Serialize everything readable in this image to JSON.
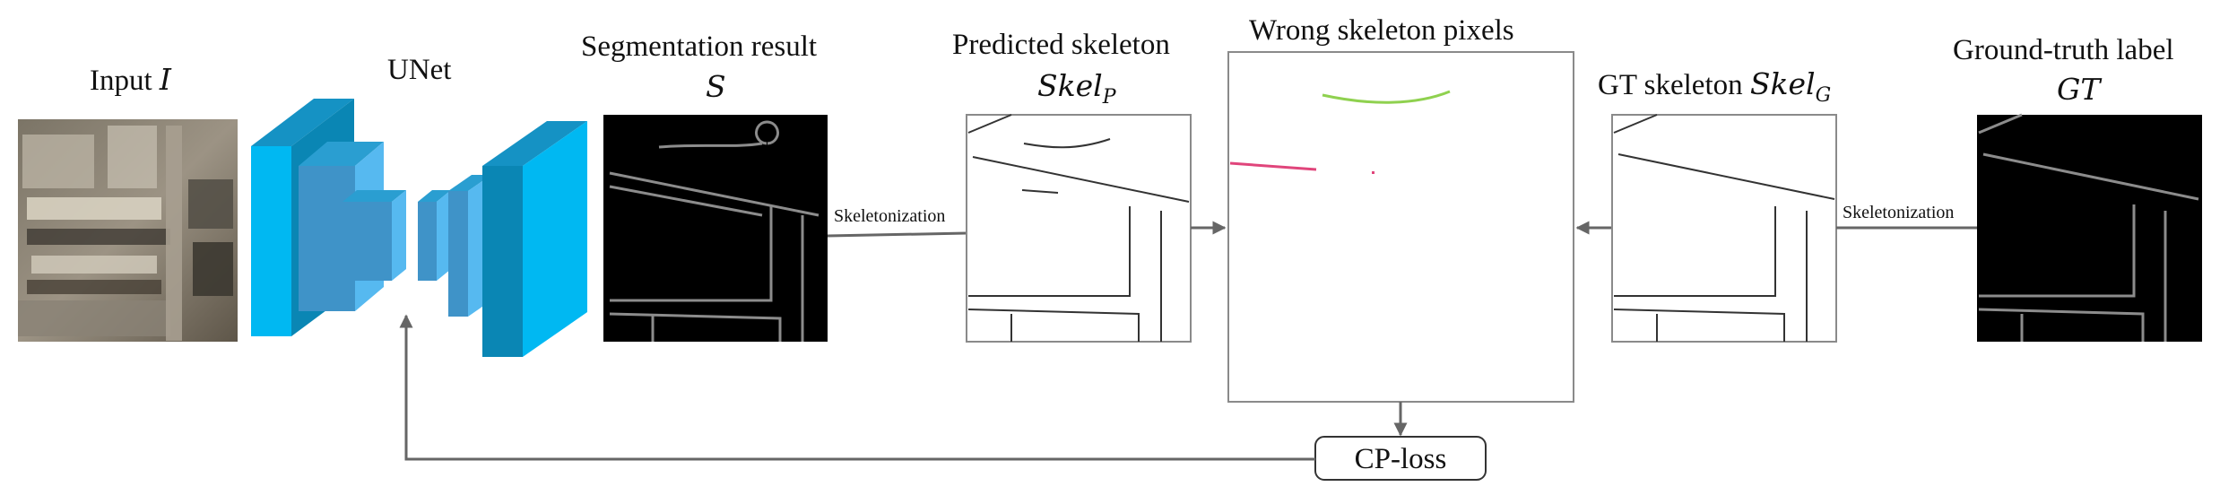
{
  "labels": {
    "input_text": "Input",
    "input_sym": "I",
    "unet": "UNet",
    "segmentation_result": "Segmentation result",
    "segmentation_sym": "S",
    "predicted_skeleton": "Predicted skeleton",
    "pred_sym_base": "Skel",
    "pred_sym_sub": "P",
    "wrong_skeleton_pixels": "Wrong skeleton pixels",
    "gt_skeleton_text": "GT skeleton",
    "gt_sym_base": "Skel",
    "gt_sym_sub": "G",
    "ground_truth_label": "Ground-truth label",
    "gt_sym": "GT",
    "skeletonization_left": "Skeletonization",
    "skeletonization_right": "Skeletonization",
    "cp_loss": "CP-loss"
  },
  "colors": {
    "unet_front": "#00b8f2",
    "unet_top": "#1592c4",
    "unet_side": "#0a86b4",
    "unet_inner": "#56b9f0",
    "false_positive": "#8fd14f",
    "false_negative": "#e0457b",
    "arrow": "#666666"
  }
}
